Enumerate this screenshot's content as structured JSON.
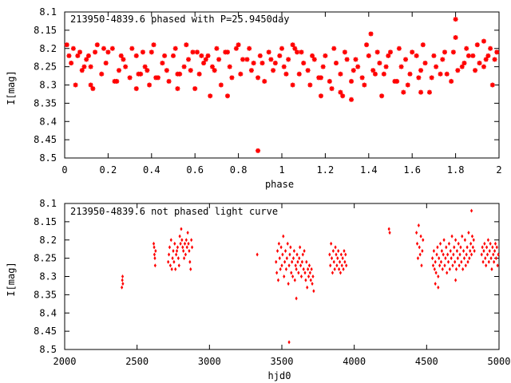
{
  "colors": {
    "points": "#ff0000",
    "axes": "#000000",
    "background": "#ffffff"
  },
  "chart_data": [
    {
      "type": "scatter",
      "title": "213950-4839.6 phased with P=25.9450day",
      "xlabel": "phase",
      "ylabel": "I[mag]",
      "xlim": [
        0,
        2
      ],
      "ylim": [
        8.1,
        8.5
      ],
      "y_inverted": true,
      "x_ticks": [
        0,
        0.2,
        0.4,
        0.6,
        0.8,
        1,
        1.2,
        1.4,
        1.6,
        1.8,
        2
      ],
      "x_tick_labels": [
        "0",
        "0.2",
        "0.4",
        "0.6",
        "0.8",
        "1",
        "1.2",
        "1.4",
        "1.6",
        "1.8",
        "2"
      ],
      "y_ticks": [
        8.1,
        8.15,
        8.2,
        8.25,
        8.3,
        8.35,
        8.4,
        8.45,
        8.5
      ],
      "y_tick_labels": [
        "8.1",
        "8.15",
        "8.2",
        "8.25",
        "8.3",
        "8.35",
        "8.4",
        "8.45",
        "8.5"
      ],
      "grid": false,
      "marker": "star",
      "series": [
        {
          "x": [
            0.01,
            0.03,
            0.06,
            0.08,
            0.1,
            0.12,
            0.14,
            0.17,
            0.19,
            0.22,
            0.25,
            0.27,
            0.3,
            0.33,
            0.35,
            0.37,
            0.4,
            0.42,
            0.45,
            0.47,
            0.5,
            0.52,
            0.55,
            0.57,
            0.59,
            0.62,
            0.64,
            0.66,
            0.69,
            0.71,
            0.74,
            0.76,
            0.79,
            0.81,
            0.84,
            0.86,
            0.89,
            0.91,
            0.94,
            0.96,
            0.99,
            1.01,
            1.03,
            1.06,
            1.08,
            1.1,
            1.12,
            1.14,
            1.17,
            1.19,
            1.22,
            1.25,
            1.27,
            1.3,
            1.33,
            1.35,
            1.37,
            1.4,
            1.42,
            1.45,
            1.47,
            1.5,
            1.52,
            1.55,
            1.57,
            1.59,
            1.62,
            1.64,
            1.66,
            1.69,
            1.71,
            1.74,
            1.76,
            1.79,
            1.81,
            1.84,
            1.86,
            1.89,
            1.91,
            1.94,
            1.96,
            1.99,
            0.02,
            0.05,
            0.09,
            0.13,
            0.18,
            0.23,
            0.28,
            0.34,
            0.38,
            0.43,
            0.48,
            0.53,
            0.58,
            0.63,
            0.68,
            0.72,
            0.77,
            0.82,
            0.87,
            0.92,
            0.97,
            1.02,
            1.07,
            1.13,
            1.18,
            1.23,
            1.28,
            1.32,
            1.38,
            1.43,
            1.48,
            1.53,
            1.58,
            1.63,
            1.68,
            1.73,
            1.78,
            1.83,
            1.88,
            1.93,
            1.98,
            0.04,
            0.07,
            0.11,
            0.15,
            0.2,
            0.26,
            0.31,
            0.36,
            0.41,
            0.46,
            0.51,
            0.56,
            0.61,
            0.65,
            0.7,
            0.75,
            0.8,
            0.85,
            0.9,
            0.95,
            1.0,
            1.05,
            1.09,
            1.15,
            1.2,
            1.24,
            1.29,
            1.34,
            1.39,
            1.44,
            1.49,
            1.54,
            1.6,
            1.65,
            1.7,
            1.75,
            1.8,
            1.85,
            1.9,
            1.95,
            0.12,
            0.33,
            0.52,
            0.67,
            0.89,
            1.18,
            1.32,
            1.46,
            1.64,
            1.8,
            1.97,
            0.24,
            0.75,
            1.05,
            1.41,
            1.56,
            1.27,
            0.6,
            0.39,
            1.93
          ],
          "y": [
            8.19,
            8.24,
            8.22,
            8.26,
            8.23,
            8.25,
            8.21,
            8.27,
            8.24,
            8.2,
            8.26,
            8.23,
            8.28,
            8.22,
            8.27,
            8.25,
            8.21,
            8.28,
            8.24,
            8.26,
            8.22,
            8.27,
            8.25,
            8.23,
            8.21,
            8.27,
            8.24,
            8.22,
            8.26,
            8.23,
            8.21,
            8.25,
            8.2,
            8.27,
            8.23,
            8.26,
            8.28,
            8.24,
            8.21,
            8.26,
            8.22,
            8.25,
            8.23,
            8.2,
            8.27,
            8.24,
            8.26,
            8.22,
            8.28,
            8.25,
            8.29,
            8.24,
            8.27,
            8.23,
            8.26,
            8.25,
            8.28,
            8.22,
            8.26,
            8.24,
            8.27,
            8.21,
            8.29,
            8.25,
            8.23,
            8.27,
            8.22,
            8.26,
            8.24,
            8.28,
            8.25,
            8.23,
            8.27,
            8.21,
            8.26,
            8.24,
            8.22,
            8.26,
            8.24,
            8.23,
            8.2,
            8.21,
            8.22,
            8.3,
            8.25,
            8.31,
            8.2,
            8.29,
            8.25,
            8.27,
            8.26,
            8.28,
            8.29,
            8.27,
            8.26,
            8.22,
            8.25,
            8.3,
            8.28,
            8.23,
            8.24,
            8.29,
            8.24,
            8.27,
            8.21,
            8.3,
            8.28,
            8.31,
            8.33,
            8.29,
            8.3,
            8.27,
            8.25,
            8.29,
            8.3,
            8.28,
            8.32,
            8.27,
            8.29,
            8.25,
            8.22,
            8.25,
            8.23,
            8.2,
            8.21,
            8.22,
            8.19,
            8.21,
            8.22,
            8.2,
            8.21,
            8.19,
            8.22,
            8.2,
            8.19,
            8.21,
            8.23,
            8.2,
            8.21,
            8.19,
            8.2,
            8.22,
            8.23,
            8.2,
            8.19,
            8.21,
            8.23,
            8.22,
            8.2,
            8.21,
            8.23,
            8.19,
            8.21,
            8.22,
            8.2,
            8.21,
            8.19,
            8.22,
            8.21,
            8.17,
            8.2,
            8.19,
            8.22,
            8.3,
            8.31,
            8.31,
            8.33,
            8.48,
            8.33,
            8.34,
            8.33,
            8.32,
            8.12,
            8.3,
            8.29,
            8.33,
            8.3,
            8.16,
            8.32,
            8.32,
            8.31,
            8.3,
            8.18
          ]
        }
      ]
    },
    {
      "type": "scatter",
      "title": "213950-4839.6 not phased light curve",
      "xlabel": "hjd0",
      "ylabel": "I[mag]",
      "xlim": [
        2000,
        5000
      ],
      "ylim": [
        8.1,
        8.5
      ],
      "y_inverted": true,
      "x_ticks": [
        2000,
        2500,
        3000,
        3500,
        4000,
        4500,
        5000
      ],
      "x_tick_labels": [
        "2000",
        "2500",
        "3000",
        "3500",
        "4000",
        "4500",
        "5000"
      ],
      "y_ticks": [
        8.1,
        8.15,
        8.2,
        8.25,
        8.3,
        8.35,
        8.4,
        8.45,
        8.5
      ],
      "y_tick_labels": [
        "8.1",
        "8.15",
        "8.2",
        "8.25",
        "8.3",
        "8.35",
        "8.4",
        "8.45",
        "8.5"
      ],
      "grid": false,
      "marker": "diamond",
      "series": [
        {
          "x": [
            2395,
            2398,
            2400,
            2402,
            2615,
            2618,
            2620,
            2623,
            2625,
            2628,
            2715,
            2720,
            2725,
            2730,
            2735,
            2740,
            2745,
            2750,
            2755,
            2760,
            2765,
            2770,
            2775,
            2780,
            2785,
            2790,
            2795,
            2800,
            2805,
            2810,
            2815,
            2820,
            2825,
            2830,
            2835,
            2840,
            2845,
            2850,
            2855,
            2860,
            2865,
            2870,
            2875,
            2880,
            3330,
            3460,
            3465,
            3470,
            3475,
            3480,
            3485,
            3490,
            3495,
            3500,
            3505,
            3510,
            3515,
            3520,
            3525,
            3530,
            3535,
            3540,
            3545,
            3550,
            3555,
            3560,
            3565,
            3570,
            3575,
            3580,
            3585,
            3590,
            3595,
            3600,
            3605,
            3610,
            3615,
            3620,
            3625,
            3630,
            3635,
            3640,
            3645,
            3650,
            3655,
            3660,
            3665,
            3670,
            3675,
            3680,
            3685,
            3690,
            3695,
            3700,
            3705,
            3710,
            3715,
            3720,
            3830,
            3835,
            3840,
            3845,
            3850,
            3855,
            3860,
            3865,
            3870,
            3875,
            3880,
            3885,
            3890,
            3895,
            3900,
            3905,
            3910,
            3915,
            3920,
            3925,
            3930,
            3935,
            3940,
            3945,
            4240,
            4245,
            4430,
            4435,
            4440,
            4445,
            4450,
            4455,
            4460,
            4465,
            4470,
            4475,
            4540,
            4545,
            4550,
            4555,
            4560,
            4565,
            4570,
            4575,
            4580,
            4585,
            4590,
            4595,
            4600,
            4605,
            4610,
            4615,
            4620,
            4625,
            4630,
            4635,
            4640,
            4645,
            4650,
            4655,
            4660,
            4665,
            4670,
            4675,
            4680,
            4685,
            4690,
            4695,
            4700,
            4705,
            4710,
            4715,
            4720,
            4725,
            4730,
            4735,
            4740,
            4745,
            4750,
            4755,
            4760,
            4765,
            4770,
            4775,
            4780,
            4785,
            4790,
            4795,
            4800,
            4805,
            4810,
            4815,
            4820,
            4825,
            4830,
            4880,
            4885,
            4890,
            4895,
            4900,
            4905,
            4910,
            4915,
            4920,
            4925,
            4930,
            4935,
            4940,
            4945,
            4950,
            4955,
            4960,
            4965,
            4970,
            4975,
            4980,
            4985,
            4990,
            4995,
            3550,
            3600,
            4560,
            4580,
            4700,
            4810
          ],
          "y": [
            8.33,
            8.31,
            8.3,
            8.32,
            8.21,
            8.22,
            8.24,
            8.25,
            8.27,
            8.23,
            8.26,
            8.24,
            8.22,
            8.27,
            8.2,
            8.28,
            8.25,
            8.23,
            8.26,
            8.21,
            8.28,
            8.24,
            8.23,
            8.22,
            8.25,
            8.27,
            8.19,
            8.21,
            8.17,
            8.2,
            8.22,
            8.23,
            8.25,
            8.21,
            8.24,
            8.2,
            8.22,
            8.18,
            8.21,
            8.23,
            8.26,
            8.28,
            8.2,
            8.22,
            8.24,
            8.26,
            8.29,
            8.23,
            8.31,
            8.21,
            8.25,
            8.28,
            8.22,
            8.27,
            8.24,
            8.19,
            8.3,
            8.26,
            8.23,
            8.28,
            8.25,
            8.21,
            8.32,
            8.27,
            8.24,
            8.22,
            8.29,
            8.26,
            8.3,
            8.25,
            8.23,
            8.31,
            8.27,
            8.28,
            8.24,
            8.26,
            8.29,
            8.25,
            8.22,
            8.27,
            8.3,
            8.26,
            8.24,
            8.28,
            8.23,
            8.29,
            8.31,
            8.26,
            8.33,
            8.28,
            8.3,
            8.27,
            8.29,
            8.31,
            8.28,
            8.32,
            8.3,
            8.34,
            8.24,
            8.27,
            8.21,
            8.25,
            8.29,
            8.23,
            8.26,
            8.28,
            8.22,
            8.24,
            8.27,
            8.25,
            8.23,
            8.28,
            8.26,
            8.29,
            8.24,
            8.27,
            8.25,
            8.28,
            8.23,
            8.26,
            8.24,
            8.27,
            8.17,
            8.18,
            8.18,
            8.21,
            8.25,
            8.16,
            8.22,
            8.24,
            8.19,
            8.27,
            8.23,
            8.2,
            8.25,
            8.27,
            8.23,
            8.28,
            8.26,
            8.29,
            8.24,
            8.22,
            8.3,
            8.25,
            8.27,
            8.21,
            8.26,
            8.23,
            8.28,
            8.24,
            8.2,
            8.27,
            8.25,
            8.22,
            8.29,
            8.24,
            8.26,
            8.21,
            8.28,
            8.23,
            8.25,
            8.19,
            8.27,
            8.24,
            8.22,
            8.26,
            8.2,
            8.28,
            8.23,
            8.25,
            8.21,
            8.27,
            8.24,
            8.22,
            8.26,
            8.19,
            8.28,
            8.23,
            8.25,
            8.2,
            8.27,
            8.24,
            8.22,
            8.26,
            8.18,
            8.25,
            8.23,
            8.21,
            8.24,
            8.19,
            8.22,
            8.2,
            8.23,
            8.24,
            8.22,
            8.26,
            8.23,
            8.21,
            8.25,
            8.27,
            8.22,
            8.24,
            8.2,
            8.26,
            8.23,
            8.21,
            8.25,
            8.28,
            8.22,
            8.24,
            8.26,
            8.23,
            8.21,
            8.25,
            8.22,
            8.27,
            8.24,
            8.48,
            8.36,
            8.32,
            8.33,
            8.31,
            8.12
          ]
        }
      ]
    }
  ]
}
